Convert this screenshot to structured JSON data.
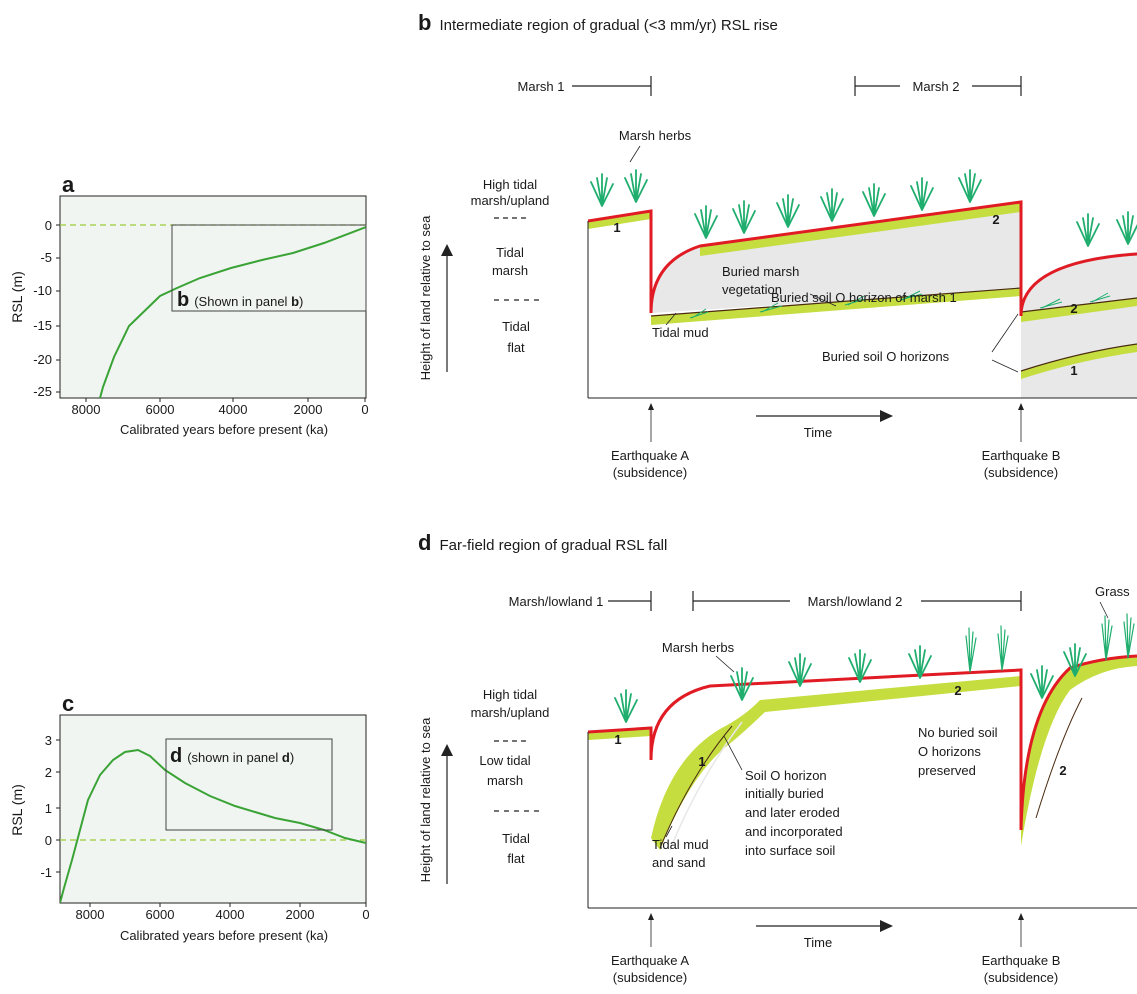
{
  "panel_a": {
    "letter": "a",
    "y_axis_label": "RSL (m)",
    "x_axis_label": "Calibrated years before present (ka)",
    "y_ticks": [
      "0",
      "-5",
      "-10",
      "-15",
      "-20",
      "-25"
    ],
    "x_ticks": [
      "8000",
      "6000",
      "4000",
      "2000",
      "0"
    ],
    "inset_letter": "b",
    "inset_text": "(Shown in panel ",
    "inset_ref": "b",
    "inset_close": ")"
  },
  "panel_c": {
    "letter": "c",
    "y_axis_label": "RSL (m)",
    "x_axis_label": "Calibrated years before present (ka)",
    "y_ticks": [
      "3",
      "2",
      "1",
      "0",
      "-1"
    ],
    "x_ticks": [
      "8000",
      "6000",
      "4000",
      "2000",
      "0"
    ],
    "inset_letter": "d",
    "inset_text": "(shown in panel ",
    "inset_ref": "d",
    "inset_close": ")"
  },
  "panel_b": {
    "letter": "b",
    "title": "Intermediate region of gradual (<3 mm/yr) RSL rise",
    "marsh1": "Marsh 1",
    "marsh2": "Marsh 2",
    "marsh_herbs": "Marsh herbs",
    "zone_high_1": "High tidal",
    "zone_high_2": "marsh/upland",
    "zone_mid_1": "Tidal",
    "zone_mid_2": "marsh",
    "zone_low_1": "Tidal",
    "zone_low_2": "flat",
    "y_axis": "Height of land relative to sea",
    "buried_veg_1": "Buried marsh",
    "buried_veg_2": "vegetation",
    "buried_soil_1": "Buried soil O horizon of marsh 1",
    "tidal_mud": "Tidal mud",
    "buried_horizons": "Buried soil O horizons",
    "time": "Time",
    "eq_a_1": "Earthquake A",
    "eq_a_2": "(subsidence)",
    "eq_b_1": "Earthquake B",
    "eq_b_2": "(subsidence)",
    "n1": "1",
    "n2": "2"
  },
  "panel_d": {
    "letter": "d",
    "title": "Far-field region of gradual RSL fall",
    "marsh1": "Marsh/lowland 1",
    "marsh2": "Marsh/lowland 2",
    "grass": "Grass",
    "marsh_herbs": "Marsh herbs",
    "zone_high_1": "High tidal",
    "zone_high_2": "marsh/upland",
    "zone_mid_1": "Low tidal",
    "zone_mid_2": "marsh",
    "zone_low_1": "Tidal",
    "zone_low_2": "flat",
    "y_axis": "Height of land relative to sea",
    "tidal_mud_1": "Tidal mud",
    "tidal_mud_2": "and sand",
    "soil_1": "Soil O horizon",
    "soil_2": "initially buried",
    "soil_3": "and later eroded",
    "soil_4": "and incorporated",
    "soil_5": "into surface soil",
    "no_buried_1": "No buried soil",
    "no_buried_2": "O horizons",
    "no_buried_3": "preserved",
    "time": "Time",
    "eq_a_1": "Earthquake A",
    "eq_a_2": "(subsidence)",
    "eq_b_1": "Earthquake B",
    "eq_b_2": "(subsidence)",
    "n1": "1",
    "n2": "2"
  },
  "colors": {
    "curve": "#3aa335",
    "plot_bg": "#f1f5f2",
    "dashed_zero": "#9ccc3a",
    "surface": "#e01b24",
    "soil": "#c5dd3f",
    "buried_fill": "#e8e8e8",
    "plant": "#1fae6e"
  }
}
